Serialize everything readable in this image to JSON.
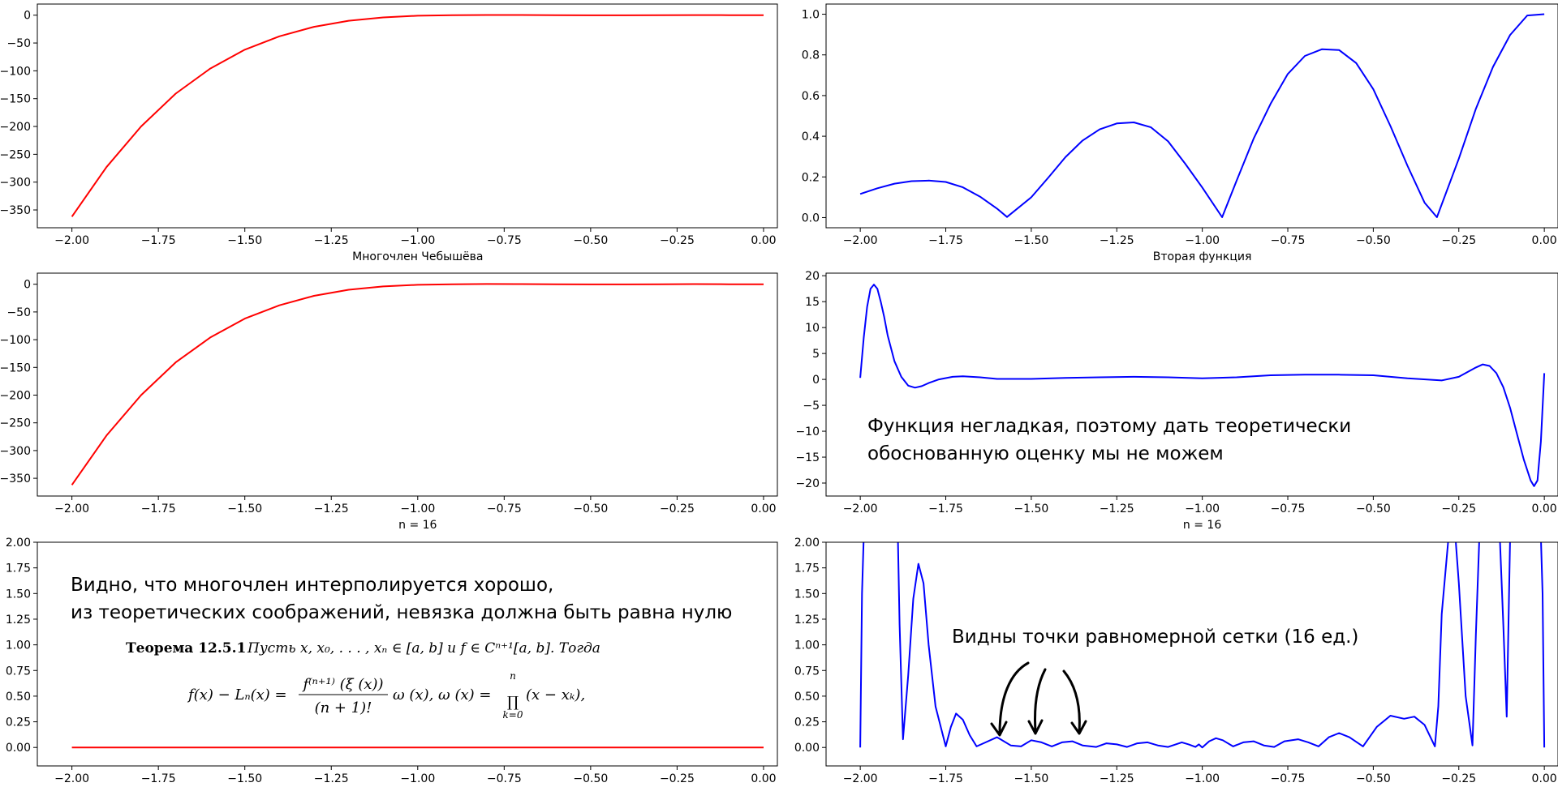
{
  "chart_data": [
    {
      "id": "top-left",
      "type": "line",
      "title": "",
      "xlabel": "Многочлен Чебышёва",
      "ylabel": "",
      "xlim": [
        -2.1,
        0.04
      ],
      "ylim": [
        -382,
        20
      ],
      "xticks": [
        "−2.00",
        "−1.75",
        "−1.50",
        "−1.25",
        "−1.00",
        "−0.75",
        "−0.50",
        "−0.25",
        "0.00"
      ],
      "yticks": [
        "0",
        "−50",
        "−100",
        "−150",
        "−200",
        "−250",
        "−300",
        "−350"
      ],
      "series": [
        {
          "color": "#ff0000",
          "x": [
            -2.0,
            -1.9,
            -1.8,
            -1.7,
            -1.6,
            -1.5,
            -1.4,
            -1.3,
            -1.2,
            -1.1,
            -1.0,
            -0.9,
            -0.8,
            -0.7,
            -0.6,
            -0.5,
            -0.4,
            -0.3,
            -0.2,
            -0.1,
            0.0
          ],
          "y": [
            -362,
            -273,
            -200,
            -141,
            -96,
            -62,
            -38,
            -21,
            -10,
            -4,
            -1,
            0,
            0.4,
            0.3,
            0,
            -0.3,
            -0.3,
            0,
            0.2,
            0,
            0
          ]
        }
      ]
    },
    {
      "id": "top-right",
      "type": "line",
      "title": "",
      "xlabel": "Вторая функция",
      "ylabel": "",
      "xlim": [
        -2.1,
        0.04
      ],
      "ylim": [
        -0.05,
        1.05
      ],
      "xticks": [
        "−2.00",
        "−1.75",
        "−1.50",
        "−1.25",
        "−1.00",
        "−0.75",
        "−0.50",
        "−0.25",
        "0.00"
      ],
      "yticks": [
        "0.0",
        "0.2",
        "0.4",
        "0.6",
        "0.8",
        "1.0"
      ],
      "series": [
        {
          "color": "#0000ff",
          "x": [
            -2.0,
            -1.95,
            -1.9,
            -1.85,
            -1.8,
            -1.75,
            -1.7,
            -1.65,
            -1.6,
            -1.571,
            -1.5,
            -1.45,
            -1.4,
            -1.35,
            -1.3,
            -1.25,
            -1.2,
            -1.15,
            -1.1,
            -1.05,
            -1.0,
            -0.942,
            -0.9,
            -0.85,
            -0.8,
            -0.75,
            -0.7,
            -0.65,
            -0.6,
            -0.55,
            -0.5,
            -0.45,
            -0.4,
            -0.35,
            -0.314,
            -0.25,
            -0.2,
            -0.15,
            -0.1,
            -0.05,
            0.0
          ],
          "y": [
            0.116,
            0.144,
            0.167,
            0.179,
            0.182,
            0.175,
            0.149,
            0.103,
            0.044,
            0.003,
            0.1,
            0.197,
            0.297,
            0.379,
            0.434,
            0.463,
            0.468,
            0.444,
            0.375,
            0.265,
            0.148,
            0.002,
            0.18,
            0.388,
            0.56,
            0.706,
            0.795,
            0.828,
            0.824,
            0.76,
            0.631,
            0.45,
            0.255,
            0.073,
            0.002,
            0.29,
            0.535,
            0.741,
            0.898,
            0.994,
            1.0
          ]
        }
      ]
    },
    {
      "id": "mid-left",
      "type": "line",
      "title": "",
      "xlabel": "n = 16",
      "ylabel": "",
      "xlim": [
        -2.1,
        0.04
      ],
      "ylim": [
        -382,
        20
      ],
      "xticks": [
        "−2.00",
        "−1.75",
        "−1.50",
        "−1.25",
        "−1.00",
        "−0.75",
        "−0.50",
        "−0.25",
        "0.00"
      ],
      "yticks": [
        "0",
        "−50",
        "−100",
        "−150",
        "−200",
        "−250",
        "−300",
        "−350"
      ],
      "series": [
        {
          "color": "#ff0000",
          "x": [
            -2.0,
            -1.9,
            -1.8,
            -1.7,
            -1.6,
            -1.5,
            -1.4,
            -1.3,
            -1.2,
            -1.1,
            -1.0,
            -0.9,
            -0.8,
            -0.7,
            -0.6,
            -0.5,
            -0.4,
            -0.3,
            -0.2,
            -0.1,
            0.0
          ],
          "y": [
            -362,
            -273,
            -200,
            -141,
            -96,
            -62,
            -38,
            -21,
            -10,
            -4,
            -1,
            0,
            0.4,
            0.3,
            0,
            -0.3,
            -0.3,
            0,
            0.2,
            0,
            0
          ]
        }
      ]
    },
    {
      "id": "mid-right",
      "type": "line",
      "title": "",
      "xlabel": "n = 16",
      "ylabel": "",
      "xlim": [
        -2.1,
        0.04
      ],
      "ylim": [
        -22.5,
        20.5
      ],
      "xticks": [
        "−2.00",
        "−1.75",
        "−1.50",
        "−1.25",
        "−1.00",
        "−0.75",
        "−0.50",
        "−0.25",
        "0.00"
      ],
      "yticks": [
        "20",
        "15",
        "10",
        "5",
        "0",
        "−5",
        "−10",
        "−15",
        "−20"
      ],
      "annotation": "Функция негладкая, поэтому дать теоретически\nобоснованную оценку мы не можем",
      "series": [
        {
          "color": "#0000ff",
          "x": [
            -2.0,
            -1.99,
            -1.98,
            -1.97,
            -1.96,
            -1.95,
            -1.94,
            -1.93,
            -1.92,
            -1.9,
            -1.88,
            -1.86,
            -1.84,
            -1.82,
            -1.8,
            -1.77,
            -1.73,
            -1.7,
            -1.65,
            -1.6,
            -1.5,
            -1.4,
            -1.3,
            -1.2,
            -1.1,
            -1.0,
            -0.9,
            -0.8,
            -0.7,
            -0.6,
            -0.5,
            -0.4,
            -0.3,
            -0.25,
            -0.2,
            -0.18,
            -0.16,
            -0.14,
            -0.12,
            -0.1,
            -0.08,
            -0.06,
            -0.04,
            -0.03,
            -0.02,
            -0.01,
            0.0
          ],
          "y": [
            0.3,
            8,
            14,
            17.5,
            18.3,
            17.5,
            15,
            12,
            8.5,
            3.5,
            0.5,
            -1.2,
            -1.6,
            -1.3,
            -0.7,
            0,
            0.5,
            0.6,
            0.4,
            0.1,
            0.1,
            0.3,
            0.4,
            0.5,
            0.4,
            0.2,
            0.4,
            0.8,
            0.9,
            0.9,
            0.8,
            0.2,
            -0.2,
            0.5,
            2.3,
            2.9,
            2.6,
            1.2,
            -1.5,
            -5.5,
            -10.5,
            -15.5,
            -19.5,
            -20.6,
            -19.5,
            -12,
            1.2
          ]
        }
      ]
    },
    {
      "id": "bottom-left",
      "type": "line",
      "title": "",
      "xlabel": "",
      "ylabel": "",
      "xlim": [
        -2.1,
        0.04
      ],
      "ylim": [
        -0.18,
        2.0
      ],
      "xticks": [
        "−2.00",
        "−1.75",
        "−1.50",
        "−1.25",
        "−1.00",
        "−0.75",
        "−0.50",
        "−0.25",
        "0.00"
      ],
      "yticks": [
        "2.00",
        "1.75",
        "1.50",
        "1.25",
        "1.00",
        "0.75",
        "0.50",
        "0.25",
        "0.00"
      ],
      "annotation": "Видно, что многочлен интерполируется хорошо,\nиз теоретических соображений, невязка должна быть равна нулю",
      "theorem": {
        "heading": "Теорема 12.5.1",
        "statement": "Пусть x, x₀, . . . , xₙ ∈ [a, b]  и  f ∈ Cⁿ⁺¹[a, b]. Тогда",
        "lhs": "f(x) − Lₙ(x) =",
        "numerator": "f⁽ⁿ⁺¹⁾ (ξ (x))",
        "denominator": "(n + 1)!",
        "middle": "ω (x),     ω (x) =",
        "product_top": "n",
        "product_symbol": "∏",
        "product_bottom": "k=0",
        "product_tail": "(x − xₖ),"
      },
      "series": [
        {
          "color": "#ff0000",
          "x": [
            -2.0,
            0.0
          ],
          "y": [
            0,
            0
          ]
        }
      ]
    },
    {
      "id": "bottom-right",
      "type": "line",
      "title": "",
      "xlabel": "",
      "ylabel": "",
      "xlim": [
        -2.1,
        0.04
      ],
      "ylim": [
        -0.18,
        2.0
      ],
      "xticks": [
        "−2.00",
        "−1.75",
        "−1.50",
        "−1.25",
        "−1.00",
        "−0.75",
        "−0.50",
        "−0.25",
        "0.00"
      ],
      "yticks": [
        "2.00",
        "1.75",
        "1.50",
        "1.25",
        "1.00",
        "0.75",
        "0.50",
        "0.25",
        "0.00"
      ],
      "annotation": "Видны точки равномерной сетки (16 ед.)",
      "series": [
        {
          "color": "#0000ff",
          "x": [
            -2.0,
            -1.995,
            -1.99,
            -1.89,
            -1.885,
            -1.875,
            -1.86,
            -1.845,
            -1.83,
            -1.815,
            -1.8,
            -1.78,
            -1.75,
            -1.735,
            -1.72,
            -1.7,
            -1.68,
            -1.66,
            -1.64,
            -1.6,
            -1.59,
            -1.56,
            -1.53,
            -1.5,
            -1.47,
            -1.44,
            -1.41,
            -1.38,
            -1.35,
            -1.31,
            -1.28,
            -1.25,
            -1.22,
            -1.19,
            -1.16,
            -1.13,
            -1.1,
            -1.06,
            -1.04,
            -1.02,
            -1.01,
            -1.0,
            -0.98,
            -0.96,
            -0.94,
            -0.91,
            -0.88,
            -0.85,
            -0.82,
            -0.79,
            -0.76,
            -0.72,
            -0.69,
            -0.66,
            -0.63,
            -0.6,
            -0.57,
            -0.53,
            -0.49,
            -0.45,
            -0.41,
            -0.38,
            -0.35,
            -0.32,
            -0.31,
            -0.3,
            -0.28,
            -0.26,
            -0.25,
            -0.23,
            -0.21,
            -0.2,
            -0.19,
            -0.17,
            -0.15,
            -0.13,
            -0.12,
            -0.11,
            -0.1,
            -0.01,
            -0.005,
            0.0
          ],
          "y": [
            0,
            1.5,
            2.05,
            2.05,
            1.2,
            0.08,
            0.7,
            1.45,
            1.79,
            1.6,
            1.0,
            0.4,
            0.01,
            0.2,
            0.33,
            0.27,
            0.12,
            0.01,
            0.04,
            0.1,
            0.08,
            0.02,
            0.01,
            0.07,
            0.05,
            0.01,
            0.05,
            0.06,
            0.02,
            0.005,
            0.04,
            0.03,
            0.005,
            0.04,
            0.05,
            0.02,
            0.005,
            0.05,
            0.03,
            0.005,
            0.03,
            0.0,
            0.06,
            0.09,
            0.07,
            0.01,
            0.05,
            0.06,
            0.02,
            0.005,
            0.06,
            0.08,
            0.05,
            0.01,
            0.1,
            0.14,
            0.1,
            0.01,
            0.2,
            0.31,
            0.28,
            0.3,
            0.22,
            0.01,
            0.4,
            1.3,
            2.05,
            2.05,
            1.6,
            0.5,
            0.02,
            1.1,
            2.05,
            2.05,
            2.05,
            2.05,
            1.2,
            0.3,
            2.05,
            2.05,
            1.5,
            0
          ]
        }
      ],
      "arrows": 3
    }
  ]
}
